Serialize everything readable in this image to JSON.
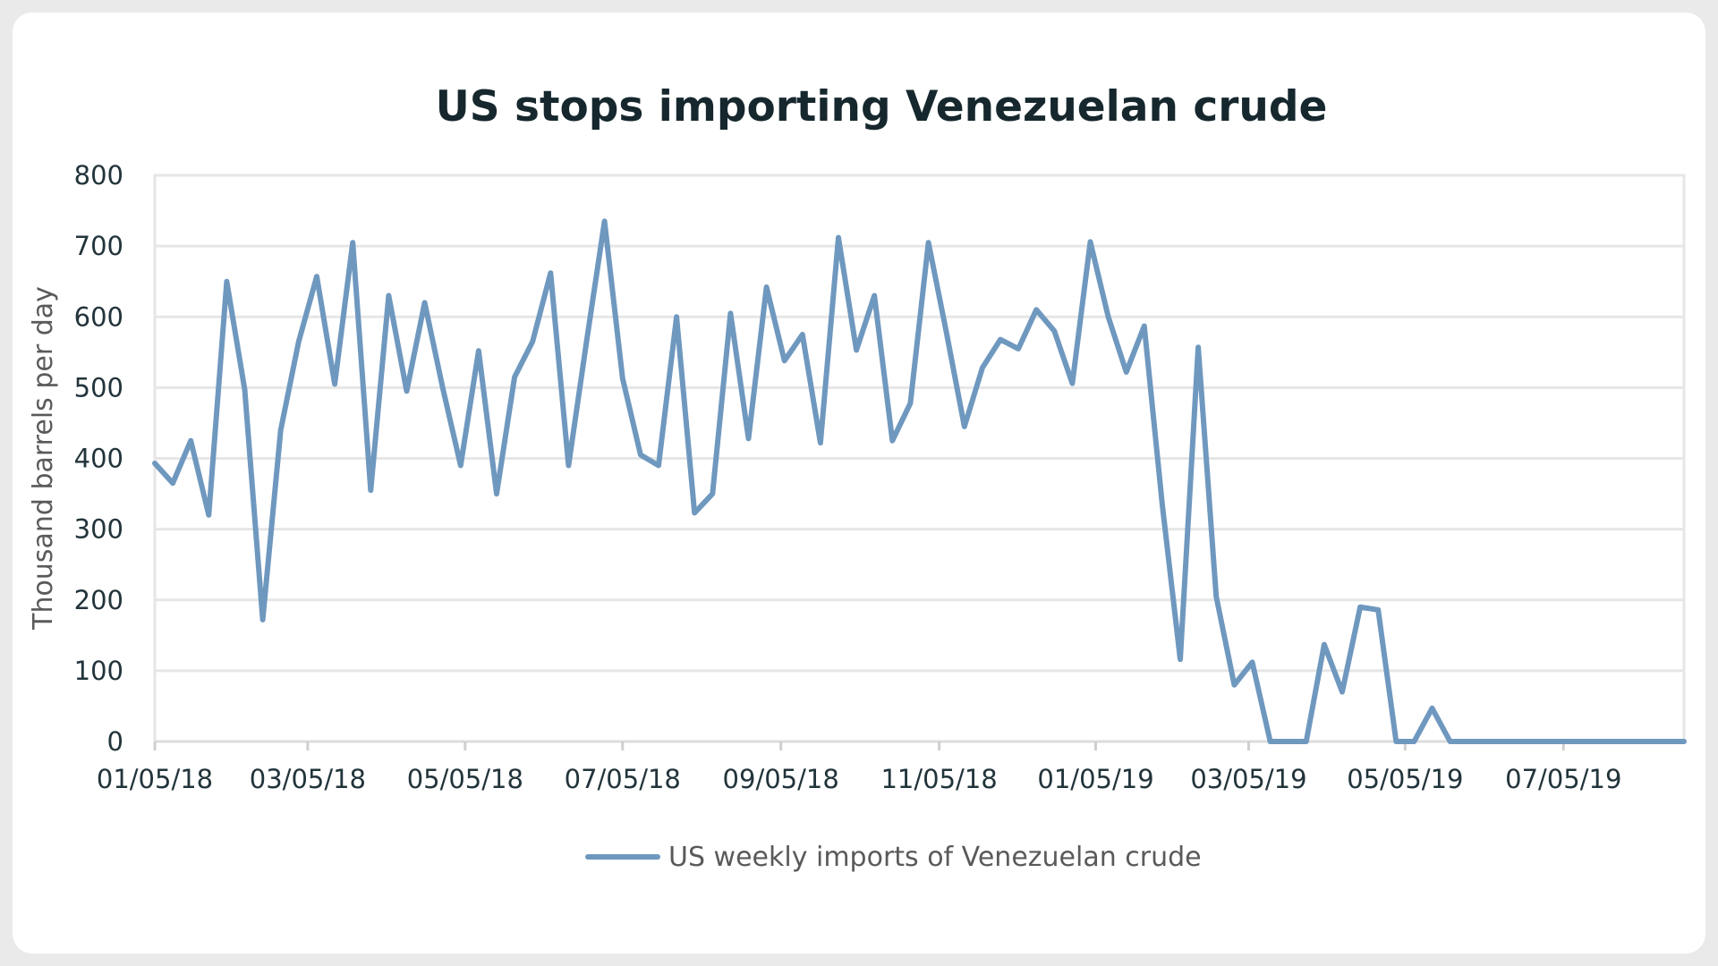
{
  "chart_data": {
    "type": "line",
    "title": "US stops importing Venezuelan crude",
    "ylabel": "Thousand barrels per day",
    "xlabel": "",
    "ylim": [
      0,
      800
    ],
    "yticks": [
      "0",
      "100",
      "200",
      "300",
      "400",
      "500",
      "600",
      "700",
      "800"
    ],
    "xtick_labels": [
      "01/05/18",
      "03/05/18",
      "05/05/18",
      "07/05/18",
      "09/05/18",
      "11/05/18",
      "01/05/19",
      "03/05/19",
      "05/05/19",
      "07/05/19"
    ],
    "grid": true,
    "legend_position": "bottom",
    "line_color": "#6f98bf",
    "series": [
      {
        "name": "US weekly imports of Venezuelan crude",
        "values": [
          393,
          365,
          425,
          320,
          650,
          497,
          172,
          440,
          565,
          657,
          505,
          705,
          355,
          630,
          495,
          620,
          500,
          390,
          552,
          350,
          515,
          565,
          662,
          390,
          565,
          735,
          513,
          405,
          390,
          600,
          323,
          350,
          605,
          428,
          642,
          538,
          575,
          422,
          712,
          553,
          630,
          425,
          478,
          705,
          578,
          445,
          528,
          568,
          555,
          610,
          580,
          506,
          706,
          600,
          522,
          587,
          335,
          116,
          557,
          205,
          80,
          112,
          0,
          0,
          0,
          137,
          70,
          190,
          186,
          0,
          0,
          47,
          0,
          0,
          0,
          0,
          0,
          0,
          0,
          0,
          0,
          0,
          0,
          0,
          0,
          0
        ]
      }
    ]
  }
}
